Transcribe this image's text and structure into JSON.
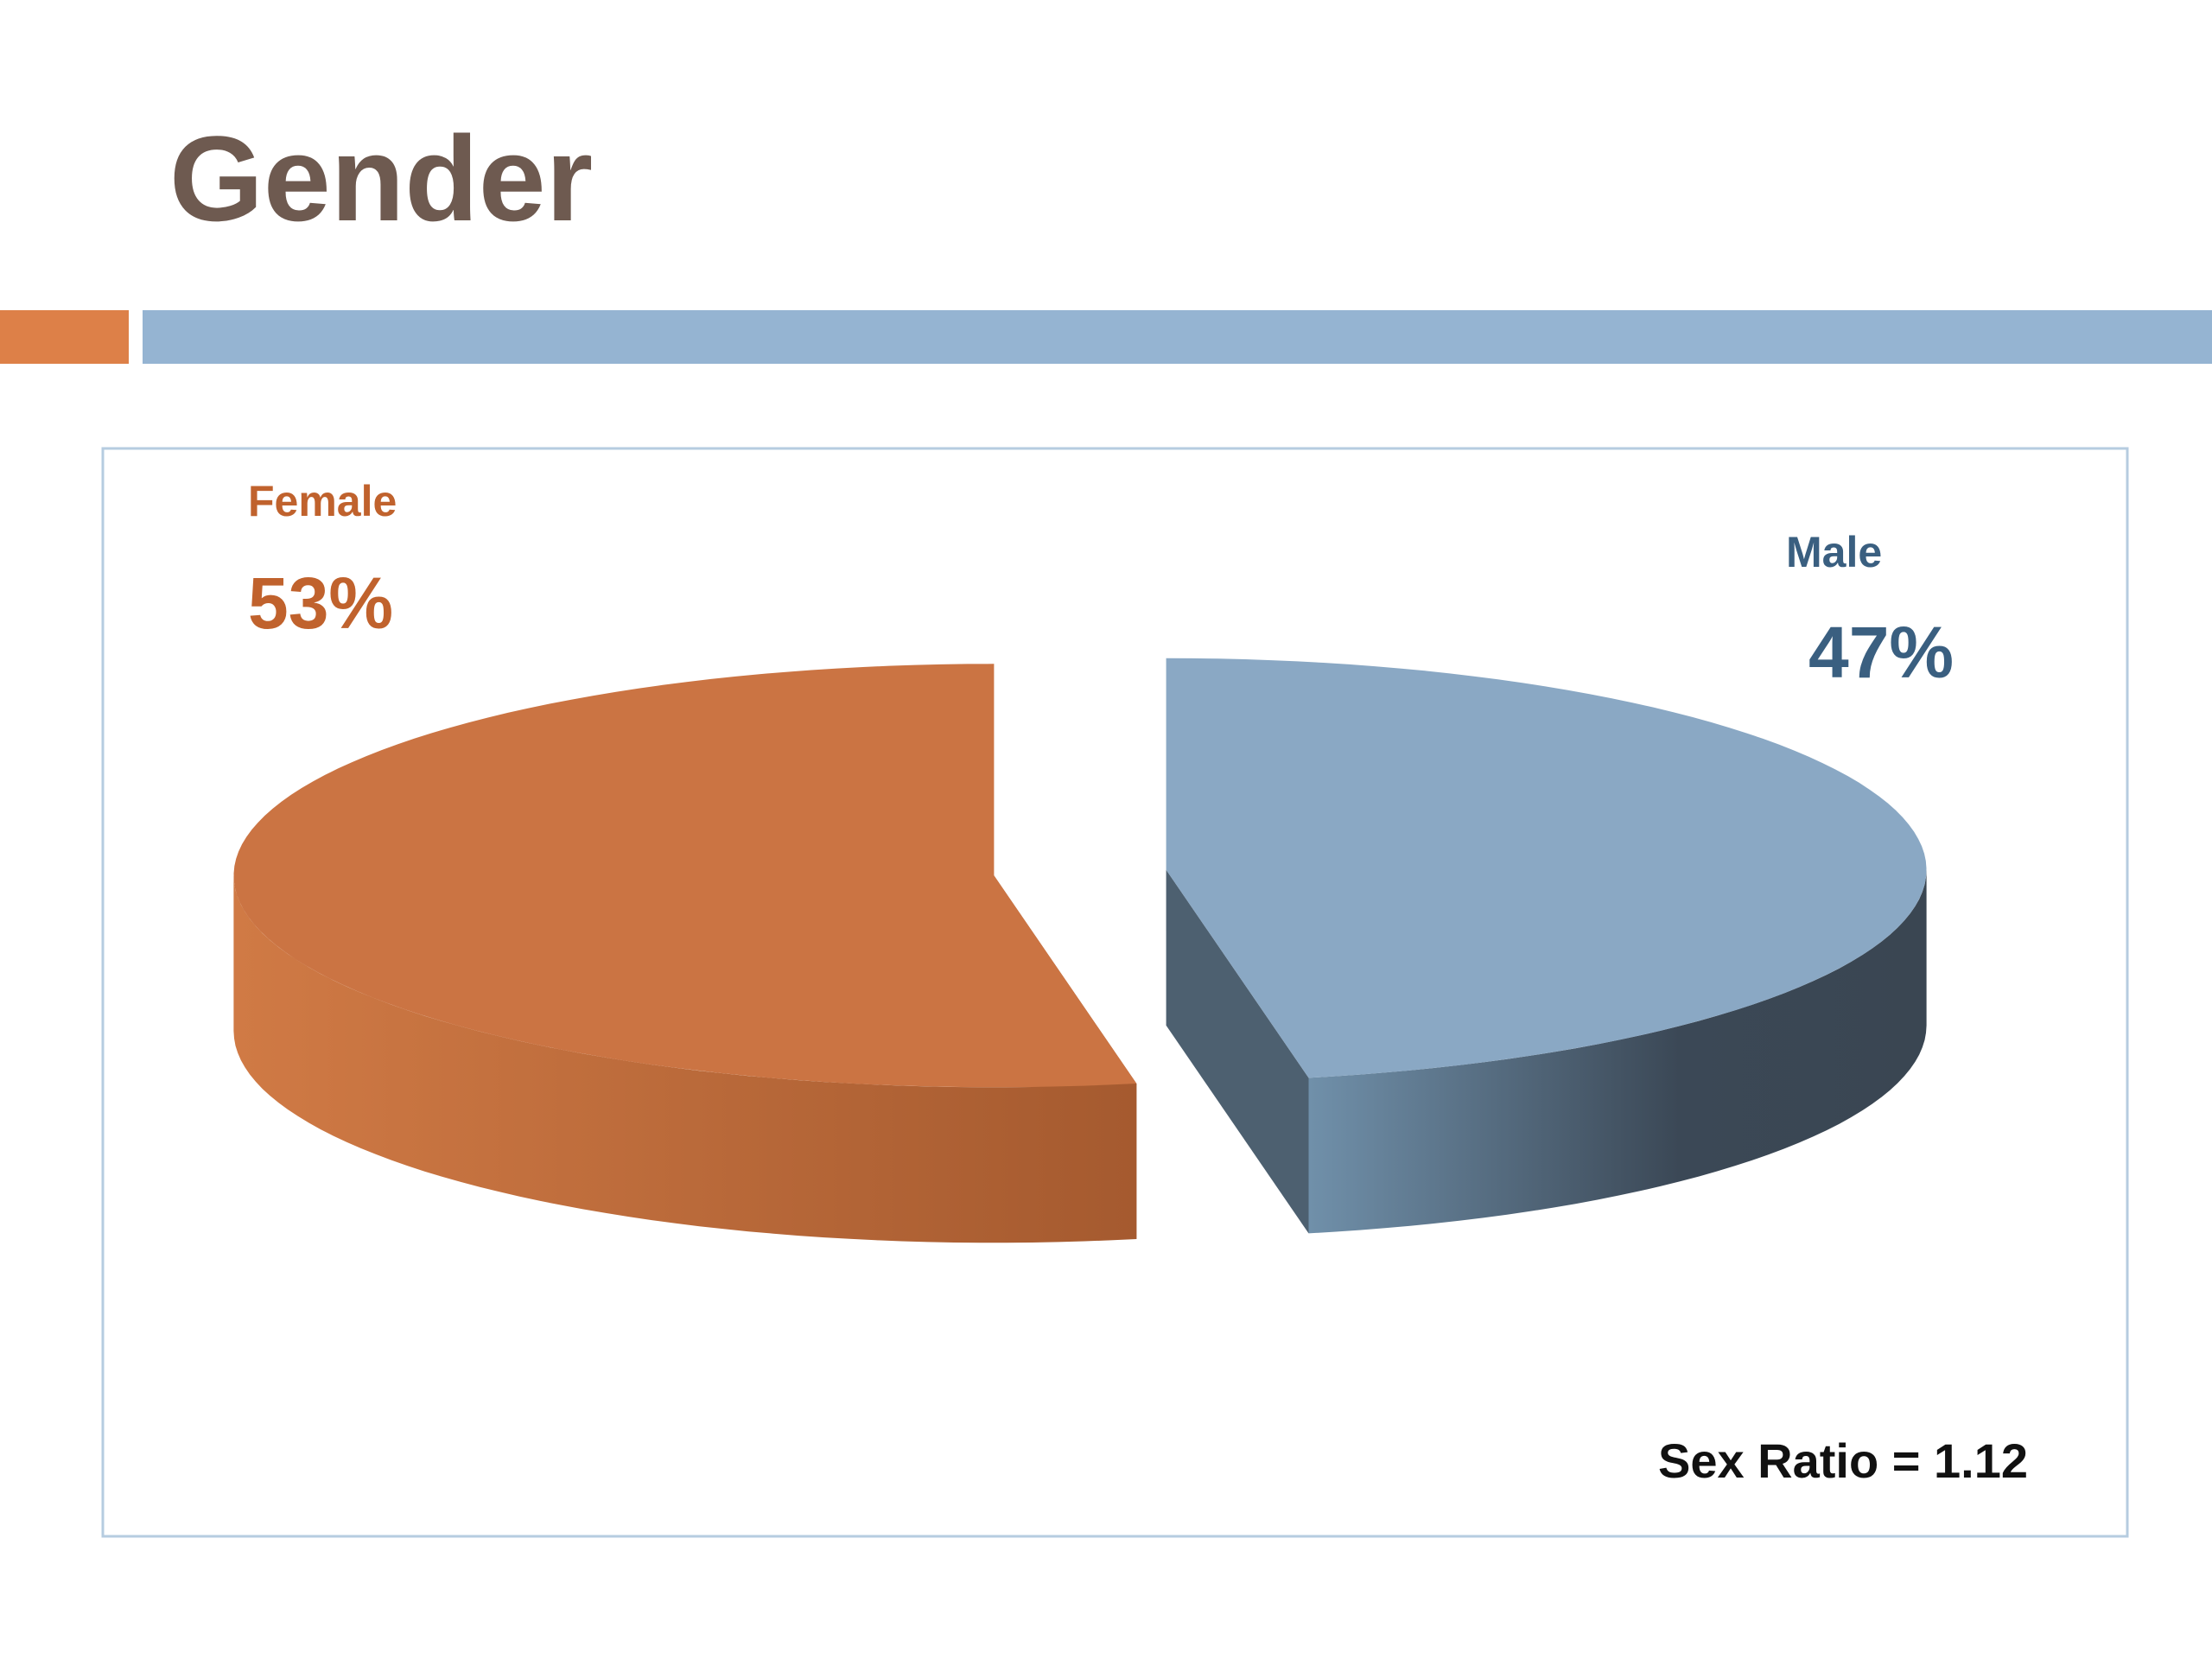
{
  "chart_data": {
    "type": "pie",
    "title": "Gender",
    "categories": [
      "Female",
      "Male"
    ],
    "values": [
      53,
      47
    ],
    "value_labels": [
      "53%",
      "47%"
    ],
    "colors": [
      "#cb7443",
      "#8aa8c4"
    ],
    "annotation": "Sex Ratio = 1.12"
  }
}
